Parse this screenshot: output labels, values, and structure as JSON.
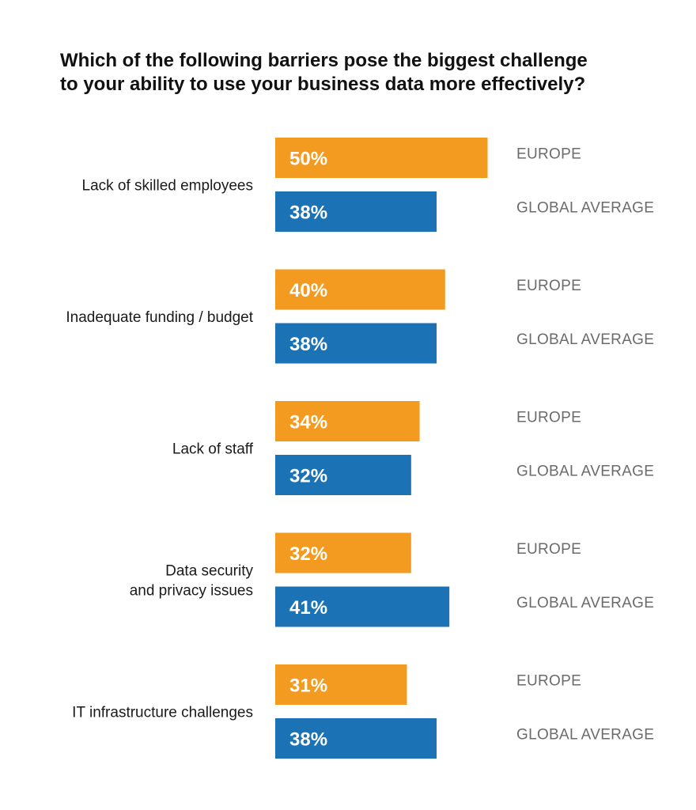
{
  "chart_data": {
    "type": "bar",
    "orientation": "horizontal",
    "title_lines": [
      "Which of the following barriers pose the biggest challenge",
      "to your ability to use your business data more effectively?"
    ],
    "categories": [
      [
        "Lack of skilled employees"
      ],
      [
        "Inadequate funding / budget"
      ],
      [
        "Lack of staff"
      ],
      [
        "Data security",
        "and privacy issues"
      ],
      [
        "IT infrastructure challenges"
      ]
    ],
    "series": [
      {
        "name": "EUROPE",
        "color": "#F39A21",
        "values": [
          50,
          40,
          34,
          32,
          31
        ]
      },
      {
        "name": "GLOBAL AVERAGE",
        "color": "#1B72B5",
        "values": [
          38,
          38,
          32,
          41,
          38
        ]
      }
    ],
    "value_suffix": "%",
    "xlim": [
      0,
      100
    ],
    "grid": false,
    "legend_placement": "right of each bar"
  }
}
